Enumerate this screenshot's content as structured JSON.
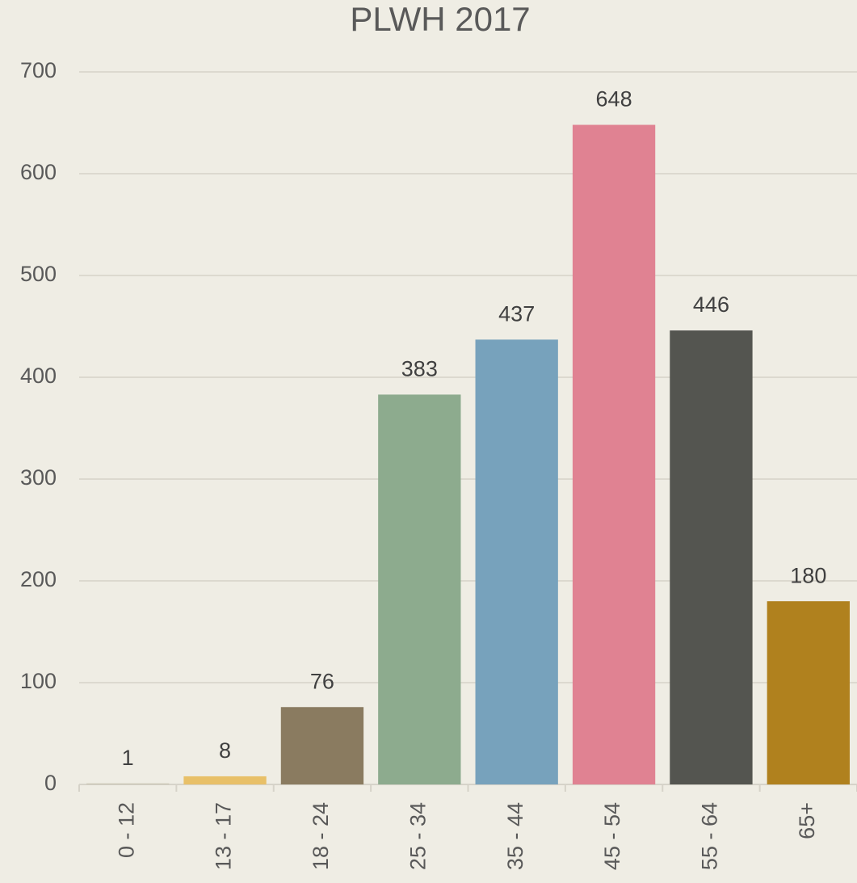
{
  "chart_data": {
    "type": "bar",
    "title": "PLWH 2017",
    "categories": [
      "0 - 12",
      "13 - 17",
      "18 - 24",
      "25 - 34",
      "35 - 44",
      "45 - 54",
      "55 - 64",
      "65+"
    ],
    "values": [
      1,
      8,
      76,
      383,
      437,
      648,
      446,
      180
    ],
    "colors": [
      "#c9c4b3",
      "#e8c068",
      "#8a7b60",
      "#8dab8e",
      "#77a2bc",
      "#e08292",
      "#545550",
      "#b0811e"
    ],
    "ylim": [
      0,
      700
    ],
    "yticks": [
      0,
      100,
      200,
      300,
      400,
      500,
      600,
      700
    ],
    "grid": true
  }
}
